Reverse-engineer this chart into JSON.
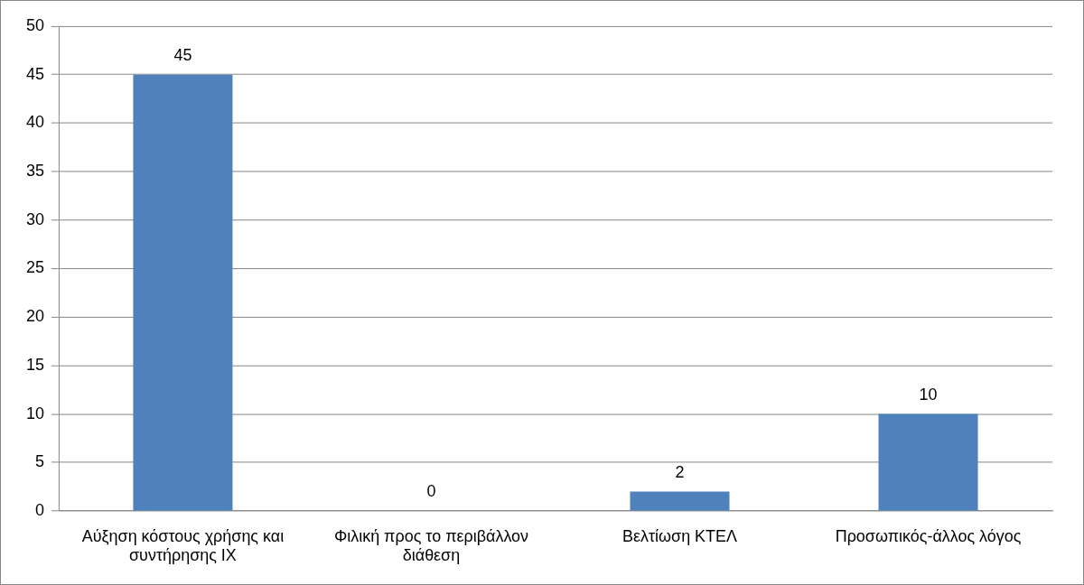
{
  "chart_data": {
    "type": "bar",
    "categories": [
      "Αύξηση κόστους χρήσης και συντήρησης ΙΧ",
      "Φιλική προς το περιβάλλον διάθεση",
      "Βελτίωση ΚΤΕΛ",
      "Προσωπικός-άλλος λόγος"
    ],
    "values": [
      45,
      0,
      2,
      10
    ],
    "color": "#4f81bd",
    "ylim": [
      0,
      50
    ],
    "yticks": [
      0,
      5,
      10,
      15,
      20,
      25,
      30,
      35,
      40,
      45,
      50
    ],
    "grid": "y",
    "data_labels": true,
    "legend": false
  }
}
